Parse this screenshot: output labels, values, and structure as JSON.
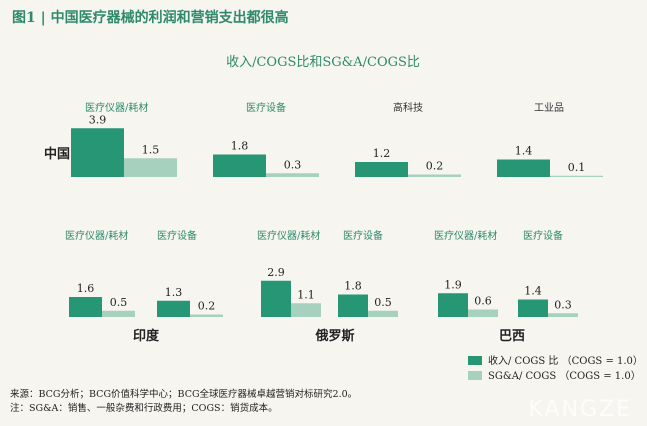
{
  "figure_title": "图1 | 中国医疗器械的利润和营销支出都很高",
  "chart_title": "收入/COGS比和SG&A/COGS比",
  "colors": {
    "series1": "#279675",
    "series2": "#a6d1be",
    "accent": "#2e8a6a",
    "background": "#f6f5f0"
  },
  "legend": [
    "收入/ COGS 比 （COGS = 1.0）",
    "SG&A/ COGS （COGS = 1.0）"
  ],
  "notes": {
    "source": "来源：BCG分析；BCG价值科学中心；BCG全球医疗器械卓越营销对标研究2.0。",
    "note": "注：SG&A：销售、一般杂费和行政费用；COGS：销货成本。"
  },
  "watermark": "KANGZE",
  "chart_data": {
    "type": "bar",
    "title": "收入/COGS比和SG&A/COGS比",
    "series_names": [
      "收入/ COGS 比 （COGS = 1.0）",
      "SG&A/ COGS （COGS = 1.0）"
    ],
    "groups": [
      {
        "country": "中国",
        "categories": [
          "医疗仪器/耗材",
          "医疗设备",
          "高科技",
          "工业品"
        ],
        "series": [
          {
            "name": "收入/ COGS 比 （COGS = 1.0）",
            "values": [
              3.9,
              1.8,
              1.2,
              1.4
            ]
          },
          {
            "name": "SG&A/ COGS （COGS = 1.0）",
            "values": [
              1.5,
              0.3,
              0.2,
              0.1
            ]
          }
        ]
      },
      {
        "country": "印度",
        "categories": [
          "医疗仪器/耗材",
          "医疗设备"
        ],
        "series": [
          {
            "name": "收入/ COGS 比 （COGS = 1.0）",
            "values": [
              1.6,
              1.3
            ]
          },
          {
            "name": "SG&A/ COGS （COGS = 1.0）",
            "values": [
              0.5,
              0.2
            ]
          }
        ]
      },
      {
        "country": "俄罗斯",
        "categories": [
          "医疗仪器/耗材",
          "医疗设备"
        ],
        "series": [
          {
            "name": "收入/ COGS 比 （COGS = 1.0）",
            "values": [
              2.9,
              1.8
            ]
          },
          {
            "name": "SG&A/ COGS （COGS = 1.0）",
            "values": [
              1.1,
              0.5
            ]
          }
        ]
      },
      {
        "country": "巴西",
        "categories": [
          "医疗仪器/耗材",
          "医疗设备"
        ],
        "series": [
          {
            "name": "收入/ COGS 比 （COGS = 1.0）",
            "values": [
              1.9,
              1.4
            ]
          },
          {
            "name": "SG&A/ COGS （COGS = 1.0）",
            "values": [
              0.6,
              0.3
            ]
          }
        ]
      }
    ]
  }
}
